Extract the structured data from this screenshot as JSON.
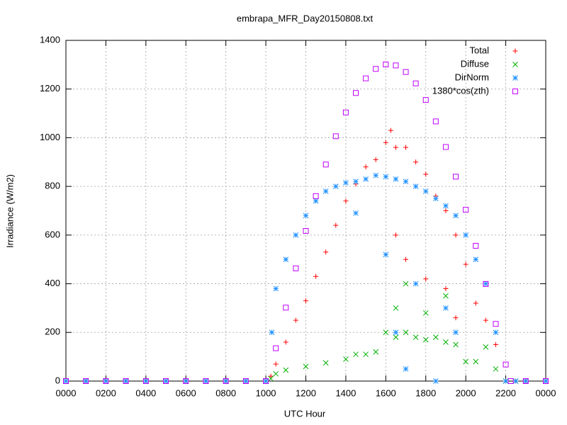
{
  "chart_data": {
    "type": "scatter",
    "title": "embrapa_MFR_Day20150808.txt",
    "x_label": "UTC Hour",
    "y_label": "Irradiance (W/m2)",
    "xlim": [
      0,
      24
    ],
    "ylim": [
      0,
      1400
    ],
    "xticks": [
      {
        "value": 0,
        "label": "0000"
      },
      {
        "value": 2,
        "label": "0200"
      },
      {
        "value": 4,
        "label": "0400"
      },
      {
        "value": 6,
        "label": "0600"
      },
      {
        "value": 8,
        "label": "0800"
      },
      {
        "value": 10,
        "label": "1000"
      },
      {
        "value": 12,
        "label": "1200"
      },
      {
        "value": 14,
        "label": "1400"
      },
      {
        "value": 16,
        "label": "1600"
      },
      {
        "value": 18,
        "label": "1800"
      },
      {
        "value": 20,
        "label": "2000"
      },
      {
        "value": 22,
        "label": "2200"
      },
      {
        "value": 24,
        "label": "0000"
      }
    ],
    "yticks": [
      0,
      200,
      400,
      600,
      800,
      1000,
      1200,
      1400
    ],
    "grid": true,
    "legend": "top right",
    "series": [
      {
        "name": "Total",
        "color": "#ff0000",
        "marker": "plus",
        "x": [
          0,
          1,
          2,
          3,
          4,
          5,
          6,
          7,
          8,
          9,
          10,
          10.25,
          10.5,
          11,
          11.5,
          12,
          12.5,
          13,
          13.5,
          14,
          14.5,
          15,
          15.5,
          16,
          16.25,
          16.5,
          17,
          17.5,
          18,
          18.5,
          19,
          19.5,
          20,
          20.5,
          21,
          21.5,
          22,
          22.5,
          23,
          24,
          16.5,
          17,
          18,
          19,
          19.5
        ],
        "values": [
          0,
          0,
          0,
          0,
          0,
          0,
          0,
          0,
          0,
          0,
          0,
          20,
          70,
          160,
          250,
          330,
          430,
          530,
          640,
          740,
          810,
          880,
          910,
          980,
          1030,
          960,
          960,
          900,
          850,
          760,
          700,
          600,
          480,
          320,
          250,
          150,
          0,
          0,
          0,
          0,
          600,
          500,
          420,
          380,
          260
        ]
      },
      {
        "name": "Diffuse",
        "color": "#00b000",
        "marker": "cross",
        "x": [
          0,
          1,
          2,
          3,
          4,
          5,
          6,
          7,
          8,
          9,
          10,
          10.25,
          10.5,
          11,
          12,
          13,
          14,
          14.5,
          15,
          15.5,
          16,
          16.5,
          17,
          17.5,
          18,
          18.5,
          19,
          19.5,
          20,
          20.5,
          21,
          21.5,
          22,
          22.5,
          23,
          24,
          16.5,
          17,
          18,
          19
        ],
        "values": [
          0,
          0,
          0,
          0,
          0,
          0,
          0,
          0,
          0,
          0,
          0,
          10,
          30,
          45,
          60,
          75,
          90,
          110,
          110,
          120,
          200,
          180,
          200,
          180,
          170,
          180,
          160,
          150,
          80,
          80,
          140,
          50,
          0,
          0,
          0,
          0,
          300,
          400,
          280,
          350
        ]
      },
      {
        "name": "DirNorm",
        "color": "#1e90ff",
        "marker": "star",
        "x": [
          0,
          1,
          2,
          3,
          4,
          5,
          6,
          7,
          8,
          9,
          10,
          10.3,
          10.5,
          11,
          11.5,
          12,
          12.5,
          13,
          13.5,
          14,
          14.5,
          15,
          15.5,
          16,
          16.5,
          17,
          17.5,
          18,
          18.5,
          19,
          19.5,
          20,
          20.5,
          21,
          21.5,
          22,
          22.5,
          23,
          24,
          16,
          16.5,
          17,
          17.5,
          18.5,
          19,
          19.5,
          14.5
        ],
        "values": [
          0,
          0,
          0,
          0,
          0,
          0,
          0,
          0,
          0,
          0,
          0,
          200,
          380,
          500,
          600,
          680,
          740,
          780,
          800,
          815,
          820,
          830,
          845,
          840,
          830,
          820,
          800,
          780,
          750,
          720,
          680,
          600,
          500,
          400,
          200,
          0,
          0,
          0,
          0,
          520,
          200,
          50,
          400,
          0,
          300,
          200,
          690
        ]
      },
      {
        "name": "1380*cos(zth)",
        "color": "#c000ff",
        "marker": "square",
        "x": [
          0,
          1,
          2,
          3,
          4,
          5,
          6,
          7,
          8,
          9,
          10,
          10.5,
          11,
          11.5,
          12,
          12.5,
          13,
          13.5,
          14,
          14.5,
          15,
          15.5,
          16,
          16.5,
          17,
          17.5,
          18,
          18.5,
          19,
          19.5,
          20,
          20.5,
          21,
          21.5,
          22,
          22.25,
          23,
          24
        ],
        "values": [
          0,
          0,
          0,
          0,
          0,
          0,
          0,
          0,
          0,
          0,
          0,
          135,
          302,
          463,
          617,
          760,
          890,
          1006,
          1104,
          1184,
          1244,
          1283,
          1301,
          1297,
          1270,
          1223,
          1155,
          1067,
          962,
          840,
          704,
          556,
          399,
          235,
          68,
          0,
          0,
          0
        ]
      }
    ]
  }
}
